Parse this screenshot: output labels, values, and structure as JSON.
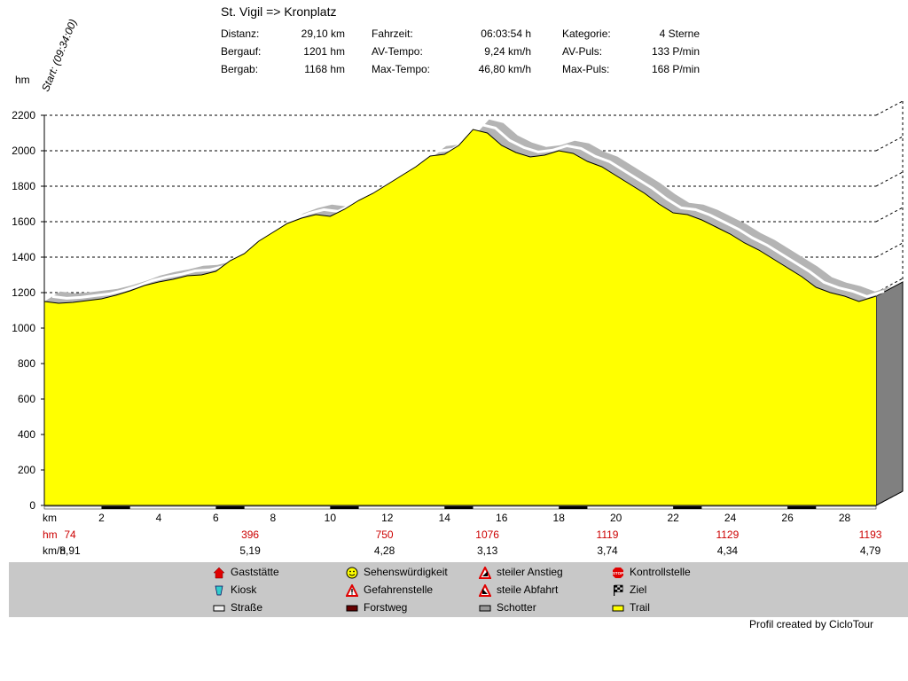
{
  "header": {
    "title": "St. Vigil => Kronplatz",
    "start_label": "Start: (09:34:00)",
    "stats": [
      {
        "label": "Distanz:",
        "value": "29,10 km"
      },
      {
        "label": "Bergauf:",
        "value": "1201 hm"
      },
      {
        "label": "Bergab:",
        "value": "1168 hm"
      },
      {
        "label": "Fahrzeit:",
        "value": "06:03:54 h"
      },
      {
        "label": "AV-Tempo:",
        "value": "9,24 km/h"
      },
      {
        "label": "Max-Tempo:",
        "value": "46,80 km/h"
      },
      {
        "label": "Kategorie:",
        "value": "4 Sterne"
      },
      {
        "label": "AV-Puls:",
        "value": "133 P/min"
      },
      {
        "label": "Max-Puls:",
        "value": "168 P/min"
      }
    ]
  },
  "chart_data": {
    "type": "area",
    "title": "St. Vigil => Kronplatz",
    "ylabel": "hm",
    "xlabel": "km",
    "xlim": [
      0,
      29.1
    ],
    "ylim": [
      0,
      2200
    ],
    "y_ticks": [
      "0",
      "200",
      "400",
      "600",
      "800",
      "1000",
      "1200",
      "1400",
      "1600",
      "1800",
      "2000",
      "2200"
    ],
    "x_ticks": [
      "2",
      "4",
      "6",
      "8",
      "10",
      "12",
      "14",
      "16",
      "18",
      "20",
      "22",
      "24",
      "26",
      "28"
    ],
    "grid": true,
    "elevation_profile": {
      "x": [
        0,
        0.5,
        1,
        1.5,
        2,
        2.5,
        3,
        3.5,
        4,
        4.5,
        5,
        5.5,
        6,
        6.5,
        7,
        7.5,
        8,
        8.5,
        9,
        9.5,
        10,
        10.5,
        11,
        11.5,
        12,
        12.5,
        13,
        13.5,
        14,
        14.5,
        15,
        15.5,
        16,
        16.5,
        17,
        17.5,
        18,
        18.5,
        19,
        19.5,
        20,
        20.5,
        21,
        21.5,
        22,
        22.5,
        23,
        23.5,
        24,
        24.5,
        25,
        25.5,
        26,
        26.5,
        27,
        27.5,
        28,
        28.5,
        29.1
      ],
      "y": [
        1150,
        1140,
        1145,
        1155,
        1165,
        1185,
        1210,
        1240,
        1260,
        1275,
        1295,
        1300,
        1320,
        1380,
        1420,
        1490,
        1540,
        1590,
        1620,
        1640,
        1630,
        1670,
        1720,
        1760,
        1810,
        1860,
        1910,
        1970,
        1980,
        2030,
        2120,
        2100,
        2030,
        1990,
        1965,
        1975,
        2000,
        1985,
        1940,
        1910,
        1860,
        1810,
        1760,
        1700,
        1650,
        1640,
        1610,
        1570,
        1530,
        1480,
        1440,
        1390,
        1340,
        1290,
        1230,
        1200,
        1180,
        1150,
        1180
      ]
    },
    "bottom_rows": {
      "hm": {
        "label": "hm",
        "entries": [
          {
            "x": 0.9,
            "v": "74"
          },
          {
            "x": 7.2,
            "v": "396"
          },
          {
            "x": 11.9,
            "v": "750"
          },
          {
            "x": 15.5,
            "v": "1076"
          },
          {
            "x": 19.7,
            "v": "1119"
          },
          {
            "x": 23.9,
            "v": "1129"
          },
          {
            "x": 28.9,
            "v": "1193"
          }
        ]
      },
      "kmh": {
        "label": "km/h",
        "entries": [
          {
            "x": 0.9,
            "v": "8,91"
          },
          {
            "x": 7.2,
            "v": "5,19"
          },
          {
            "x": 11.9,
            "v": "4,28"
          },
          {
            "x": 15.5,
            "v": "3,13"
          },
          {
            "x": 19.7,
            "v": "3,74"
          },
          {
            "x": 23.9,
            "v": "4,34"
          },
          {
            "x": 28.9,
            "v": "4,79"
          }
        ]
      }
    },
    "colors": {
      "fill": "#ffff00",
      "shadow": "#b4b4b4",
      "side": "#808080",
      "hm_row": "#cc0000"
    }
  },
  "legend": {
    "items": [
      {
        "label": "Gaststätte",
        "icon": "house-icon"
      },
      {
        "label": "Kiosk",
        "icon": "cup-icon"
      },
      {
        "label": "Straße",
        "icon": "road-swatch"
      },
      {
        "label": "Sehenswürdigkeit",
        "icon": "smiley-icon"
      },
      {
        "label": "Gefahrenstelle",
        "icon": "warning-icon"
      },
      {
        "label": "Forstweg",
        "icon": "forest-swatch"
      },
      {
        "label": "steiler Anstieg",
        "icon": "ascent-icon"
      },
      {
        "label": "steile Abfahrt",
        "icon": "descent-icon"
      },
      {
        "label": "Schotter",
        "icon": "gravel-swatch"
      },
      {
        "label": "Kontrollstelle",
        "icon": "stop-icon"
      },
      {
        "label": "Ziel",
        "icon": "finish-flag-icon"
      },
      {
        "label": "Trail",
        "icon": "trail-swatch"
      }
    ]
  },
  "footer": {
    "credit": "Profil created by CicloTour"
  }
}
